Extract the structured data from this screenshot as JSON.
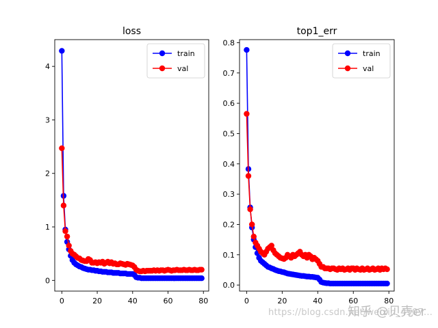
{
  "chart_data": [
    {
      "type": "line",
      "title": "loss",
      "xlabel": "",
      "ylabel": "",
      "xlim": [
        -4,
        83
      ],
      "ylim": [
        -0.2,
        4.5
      ],
      "xticks": [
        0,
        20,
        40,
        60,
        80
      ],
      "yticks": [
        0,
        1,
        2,
        3,
        4
      ],
      "legend": "top-right",
      "x": [
        0,
        1,
        2,
        3,
        4,
        5,
        6,
        7,
        8,
        9,
        10,
        11,
        12,
        13,
        14,
        15,
        16,
        17,
        18,
        19,
        20,
        21,
        22,
        23,
        24,
        25,
        26,
        27,
        28,
        29,
        30,
        31,
        32,
        33,
        34,
        35,
        36,
        37,
        38,
        39,
        40,
        41,
        42,
        43,
        44,
        45,
        46,
        47,
        48,
        49,
        50,
        51,
        52,
        53,
        54,
        55,
        56,
        57,
        58,
        59,
        60,
        61,
        62,
        63,
        64,
        65,
        66,
        67,
        68,
        69,
        70,
        71,
        72,
        73,
        74,
        75,
        76,
        77,
        78,
        79
      ],
      "series": [
        {
          "name": "train",
          "color": "#0000ff",
          "values": [
            4.29,
            1.58,
            0.95,
            0.72,
            0.58,
            0.46,
            0.38,
            0.33,
            0.3,
            0.28,
            0.26,
            0.25,
            0.23,
            0.22,
            0.21,
            0.2,
            0.2,
            0.19,
            0.19,
            0.18,
            0.18,
            0.17,
            0.17,
            0.16,
            0.16,
            0.16,
            0.15,
            0.15,
            0.15,
            0.14,
            0.14,
            0.14,
            0.14,
            0.13,
            0.13,
            0.13,
            0.13,
            0.12,
            0.12,
            0.12,
            0.12,
            0.1,
            0.06,
            0.05,
            0.05,
            0.04,
            0.04,
            0.04,
            0.04,
            0.04,
            0.04,
            0.04,
            0.04,
            0.04,
            0.04,
            0.04,
            0.04,
            0.04,
            0.04,
            0.04,
            0.04,
            0.04,
            0.04,
            0.04,
            0.04,
            0.04,
            0.04,
            0.04,
            0.04,
            0.04,
            0.04,
            0.04,
            0.04,
            0.04,
            0.04,
            0.04,
            0.04,
            0.04,
            0.04,
            0.04
          ]
        },
        {
          "name": "val",
          "color": "#ff0000",
          "values": [
            2.47,
            1.4,
            0.92,
            0.82,
            0.65,
            0.55,
            0.5,
            0.48,
            0.45,
            0.42,
            0.41,
            0.38,
            0.37,
            0.36,
            0.36,
            0.4,
            0.38,
            0.33,
            0.33,
            0.34,
            0.32,
            0.34,
            0.33,
            0.35,
            0.31,
            0.33,
            0.35,
            0.32,
            0.34,
            0.31,
            0.32,
            0.3,
            0.3,
            0.32,
            0.31,
            0.3,
            0.29,
            0.31,
            0.3,
            0.29,
            0.28,
            0.25,
            0.2,
            0.18,
            0.17,
            0.17,
            0.18,
            0.17,
            0.18,
            0.18,
            0.18,
            0.18,
            0.19,
            0.18,
            0.19,
            0.18,
            0.19,
            0.19,
            0.18,
            0.19,
            0.2,
            0.19,
            0.18,
            0.19,
            0.19,
            0.2,
            0.19,
            0.19,
            0.19,
            0.2,
            0.19,
            0.19,
            0.2,
            0.19,
            0.19,
            0.2,
            0.19,
            0.19,
            0.2,
            0.2
          ]
        }
      ]
    },
    {
      "type": "line",
      "title": "top1_err",
      "xlabel": "",
      "ylabel": "",
      "xlim": [
        -4,
        83
      ],
      "ylim": [
        -0.02,
        0.81
      ],
      "xticks": [
        0,
        20,
        40,
        60,
        80
      ],
      "yticks": [
        0.0,
        0.1,
        0.2,
        0.3,
        0.4,
        0.5,
        0.6,
        0.7,
        0.8
      ],
      "legend": "top-right",
      "x": [
        0,
        1,
        2,
        3,
        4,
        5,
        6,
        7,
        8,
        9,
        10,
        11,
        12,
        13,
        14,
        15,
        16,
        17,
        18,
        19,
        20,
        21,
        22,
        23,
        24,
        25,
        26,
        27,
        28,
        29,
        30,
        31,
        32,
        33,
        34,
        35,
        36,
        37,
        38,
        39,
        40,
        41,
        42,
        43,
        44,
        45,
        46,
        47,
        48,
        49,
        50,
        51,
        52,
        53,
        54,
        55,
        56,
        57,
        58,
        59,
        60,
        61,
        62,
        63,
        64,
        65,
        66,
        67,
        68,
        69,
        70,
        71,
        72,
        73,
        74,
        75,
        76,
        77,
        78,
        79
      ],
      "series": [
        {
          "name": "train",
          "color": "#0000ff",
          "values": [
            0.776,
            0.383,
            0.256,
            0.19,
            0.15,
            0.125,
            0.105,
            0.09,
            0.08,
            0.075,
            0.07,
            0.065,
            0.06,
            0.058,
            0.055,
            0.053,
            0.05,
            0.048,
            0.046,
            0.045,
            0.043,
            0.042,
            0.04,
            0.038,
            0.037,
            0.036,
            0.035,
            0.034,
            0.033,
            0.032,
            0.031,
            0.03,
            0.03,
            0.029,
            0.028,
            0.028,
            0.027,
            0.027,
            0.026,
            0.025,
            0.024,
            0.018,
            0.01,
            0.008,
            0.007,
            0.006,
            0.006,
            0.005,
            0.005,
            0.005,
            0.005,
            0.005,
            0.005,
            0.005,
            0.005,
            0.005,
            0.005,
            0.005,
            0.005,
            0.005,
            0.005,
            0.005,
            0.005,
            0.005,
            0.005,
            0.005,
            0.005,
            0.005,
            0.005,
            0.005,
            0.005,
            0.005,
            0.005,
            0.005,
            0.005,
            0.005,
            0.005,
            0.005,
            0.005,
            0.005
          ]
        },
        {
          "name": "val",
          "color": "#ff0000",
          "values": [
            0.565,
            0.36,
            0.25,
            0.2,
            0.16,
            0.14,
            0.13,
            0.12,
            0.11,
            0.105,
            0.1,
            0.11,
            0.12,
            0.125,
            0.13,
            0.115,
            0.105,
            0.1,
            0.095,
            0.09,
            0.088,
            0.086,
            0.09,
            0.1,
            0.095,
            0.09,
            0.1,
            0.095,
            0.1,
            0.105,
            0.11,
            0.1,
            0.095,
            0.1,
            0.09,
            0.1,
            0.095,
            0.085,
            0.09,
            0.085,
            0.08,
            0.07,
            0.06,
            0.06,
            0.055,
            0.055,
            0.055,
            0.052,
            0.055,
            0.055,
            0.052,
            0.05,
            0.055,
            0.052,
            0.055,
            0.05,
            0.052,
            0.055,
            0.05,
            0.055,
            0.055,
            0.05,
            0.055,
            0.052,
            0.05,
            0.055,
            0.05,
            0.052,
            0.055,
            0.05,
            0.052,
            0.055,
            0.05,
            0.052,
            0.055,
            0.05,
            0.055,
            0.052,
            0.055,
            0.052
          ]
        }
      ]
    }
  ],
  "watermark": {
    "url": "https://blog.csdn.net/weixin_4507...",
    "brand": "知乎 @贝壳er"
  }
}
